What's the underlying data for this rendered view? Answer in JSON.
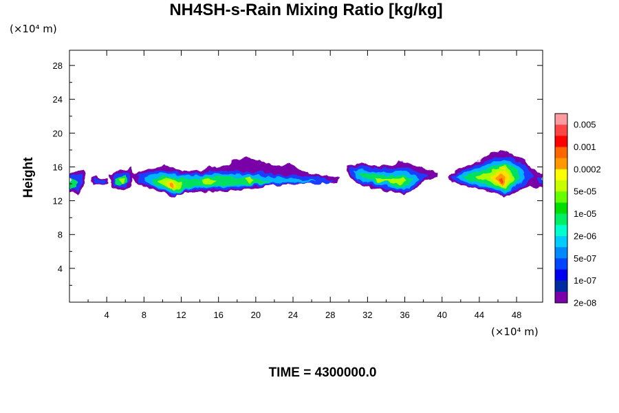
{
  "chart_data": {
    "type": "heatmap",
    "title": "NH4SH-s-Rain Mixing Ratio [kg/kg]",
    "ylabel": "Height",
    "x_unit": "(×10⁴ m)",
    "y_unit": "(×10⁴ m)",
    "xlim": [
      0,
      50.8
    ],
    "ylim": [
      0,
      29.8
    ],
    "x_ticks": [
      4,
      8,
      12,
      16,
      20,
      24,
      28,
      32,
      36,
      40,
      44,
      48
    ],
    "y_ticks": [
      4,
      8,
      12,
      16,
      20,
      24,
      28
    ],
    "annotation": "TIME = 4300000.0",
    "colorbar": {
      "labels": [
        "0.005",
        "0.001",
        "0.0002",
        "5e-05",
        "1e-05",
        "2e-06",
        "5e-07",
        "1e-07",
        "2e-08"
      ],
      "colors": [
        "#ff9aa0",
        "#ff4444",
        "#ff0000",
        "#ff6600",
        "#ff9900",
        "#ffff00",
        "#c8ff00",
        "#66ff00",
        "#00dd00",
        "#00ee66",
        "#00ffcc",
        "#00ccff",
        "#0088ff",
        "#0044ff",
        "#0000ee",
        "#002aa0",
        "#7a00a8"
      ]
    },
    "regions": [
      {
        "x": [
          0,
          1.8
        ],
        "y": [
          12.8,
          15.6
        ],
        "peak": "1e-05"
      },
      {
        "x": [
          3.5,
          7
        ],
        "y": [
          13.2,
          15.9
        ],
        "peak": "5e-05"
      },
      {
        "x": [
          6.8,
          29
        ],
        "y": [
          12.5,
          17
        ],
        "peak": "0.0002"
      },
      {
        "x": [
          29.8,
          39.6
        ],
        "y": [
          12.8,
          16.8
        ],
        "peak": "5e-05"
      },
      {
        "x": [
          40.5,
          50.8
        ],
        "y": [
          12.4,
          18
        ],
        "peak": "0.001"
      }
    ]
  }
}
